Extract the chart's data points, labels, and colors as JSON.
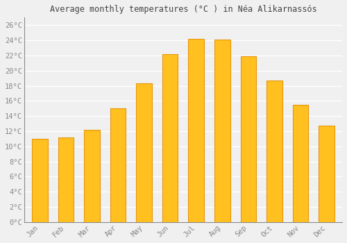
{
  "title": "Average monthly temperatures (°C ) in Néa Alikarnassós",
  "months": [
    "Jan",
    "Feb",
    "Mar",
    "Apr",
    "May",
    "Jun",
    "Jul",
    "Aug",
    "Sep",
    "Oct",
    "Nov",
    "Dec"
  ],
  "values": [
    11.0,
    11.2,
    12.2,
    15.0,
    18.3,
    22.2,
    24.2,
    24.1,
    21.9,
    18.7,
    15.5,
    12.7
  ],
  "bar_color": "#FFC020",
  "bar_edge_color": "#E8960A",
  "background_color": "#f0f0f0",
  "plot_bg_color": "#f0f0f0",
  "grid_color": "#ffffff",
  "tick_label_color": "#888888",
  "title_color": "#444444",
  "ylim": [
    0,
    27
  ],
  "yticks": [
    0,
    2,
    4,
    6,
    8,
    10,
    12,
    14,
    16,
    18,
    20,
    22,
    24,
    26
  ],
  "ytick_labels": [
    "0°C",
    "2°C",
    "4°C",
    "6°C",
    "8°C",
    "10°C",
    "12°C",
    "14°C",
    "16°C",
    "18°C",
    "20°C",
    "22°C",
    "24°C",
    "26°C"
  ]
}
